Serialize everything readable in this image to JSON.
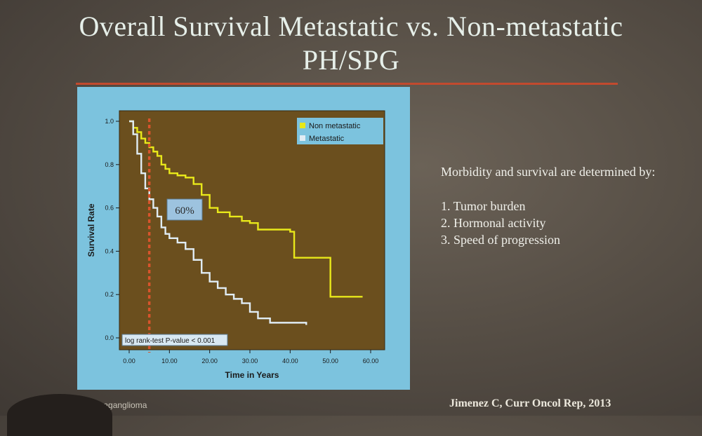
{
  "slide": {
    "title_line1": "Overall Survival Metastatic vs. Non-metastatic",
    "title_line2": "PH/SPG",
    "side_heading": "Morbidity and survival are determined by:",
    "side_items": [
      "1.  Tumor burden",
      "2.  Hormonal activity",
      "3.  Speed of progression"
    ],
    "citation": "Jimenez C, Curr Oncol Rep, 2013",
    "footer_left": "paraganglioma"
  },
  "colors": {
    "panel_bg": "#7cc3de",
    "plot_bg": "#6b4f1e",
    "non_metastatic": "#e8e81a",
    "metastatic": "#e0ecf4",
    "marker_line": "#d8542c",
    "title_rule": "#c24a2e"
  },
  "chart_data": {
    "type": "line",
    "xlabel": "Time in Years",
    "ylabel": "Survival Rate",
    "xlim": [
      0,
      60
    ],
    "ylim": [
      0,
      1.0
    ],
    "x_ticks": [
      "0.00",
      "10.00",
      "20.00",
      "30.00",
      "40.00",
      "50.00",
      "60.00"
    ],
    "y_ticks": [
      "0.0",
      "0.2",
      "0.4",
      "0.6",
      "0.8",
      "1.0"
    ],
    "legend": {
      "position": "top-right"
    },
    "annotation_label": "60%",
    "vertical_marker_x": 5,
    "test_label": "log rank-test P-value < 0.001",
    "series": [
      {
        "name": "Non metastatic",
        "x": [
          0,
          1,
          2,
          3,
          4,
          5,
          6,
          7,
          8,
          9,
          10,
          12,
          14,
          16,
          18,
          20,
          22,
          25,
          28,
          30,
          32,
          40,
          41,
          50,
          58
        ],
        "y": [
          1.0,
          0.97,
          0.95,
          0.92,
          0.9,
          0.88,
          0.86,
          0.84,
          0.8,
          0.78,
          0.76,
          0.75,
          0.74,
          0.71,
          0.66,
          0.6,
          0.58,
          0.56,
          0.54,
          0.53,
          0.5,
          0.49,
          0.37,
          0.19,
          0.19
        ]
      },
      {
        "name": "Metastatic",
        "x": [
          0,
          1,
          2,
          3,
          4,
          5,
          6,
          7,
          8,
          9,
          10,
          12,
          14,
          16,
          18,
          20,
          22,
          24,
          26,
          28,
          30,
          32,
          35,
          40,
          44
        ],
        "y": [
          1.0,
          0.94,
          0.85,
          0.76,
          0.69,
          0.64,
          0.6,
          0.56,
          0.51,
          0.48,
          0.46,
          0.44,
          0.41,
          0.36,
          0.3,
          0.26,
          0.23,
          0.2,
          0.18,
          0.16,
          0.12,
          0.09,
          0.07,
          0.07,
          0.06
        ]
      }
    ]
  }
}
